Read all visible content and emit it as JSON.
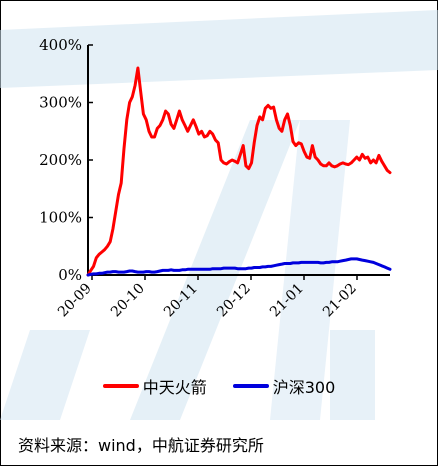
{
  "colors": {
    "series_1": "#ff0000",
    "series_2": "#0000dd",
    "watermark": "#cfe3f1"
  },
  "chart_data": {
    "type": "line",
    "y_axis": {
      "min": 0,
      "max": 400,
      "ticks": [
        "0%",
        "100%",
        "200%",
        "300%",
        "400%"
      ]
    },
    "x_axis": {
      "tick_labels": [
        "20-09",
        "20-10",
        "20-11",
        "20-12",
        "21-01",
        "21-02"
      ]
    },
    "grid": false,
    "legend_position": "bottom",
    "series": [
      {
        "name": "中天火箭",
        "color": "#ff0000",
        "values": [
          0,
          8,
          15,
          30,
          36,
          40,
          44,
          50,
          58,
          80,
          110,
          140,
          160,
          220,
          270,
          300,
          310,
          330,
          360,
          320,
          280,
          270,
          250,
          240,
          240,
          255,
          260,
          270,
          285,
          280,
          262,
          255,
          270,
          285,
          270,
          260,
          250,
          260,
          270,
          258,
          245,
          250,
          240,
          242,
          250,
          245,
          235,
          230,
          200,
          195,
          193,
          197,
          200,
          198,
          195,
          210,
          225,
          190,
          185,
          195,
          230,
          260,
          275,
          270,
          290,
          295,
          290,
          292,
          270,
          255,
          250,
          270,
          280,
          260,
          232,
          225,
          230,
          228,
          215,
          205,
          203,
          225,
          205,
          200,
          193,
          190,
          190,
          195,
          190,
          188,
          190,
          193,
          195,
          193,
          192,
          195,
          200,
          205,
          200,
          210,
          203,
          205,
          195,
          200,
          195,
          208,
          198,
          190,
          182,
          178
        ]
      },
      {
        "name": "沪深300",
        "color": "#0000dd",
        "values": [
          0,
          1,
          2,
          2,
          3,
          3,
          4,
          5,
          5,
          6,
          6,
          5,
          5,
          5,
          6,
          7,
          7,
          6,
          5,
          5,
          5,
          6,
          6,
          5,
          5,
          6,
          7,
          8,
          8,
          8,
          9,
          8,
          8,
          8,
          9,
          9,
          10,
          10,
          10,
          10,
          10,
          10,
          10,
          10,
          10,
          11,
          11,
          11,
          11,
          12,
          12,
          12,
          12,
          12,
          11,
          11,
          11,
          11,
          12,
          12,
          13,
          13,
          13,
          14,
          14,
          15,
          15,
          16,
          17,
          18,
          19,
          20,
          20,
          20,
          21,
          21,
          21,
          22,
          22,
          22,
          22,
          22,
          22,
          22,
          21,
          21,
          22,
          22,
          23,
          23,
          23,
          24,
          25,
          26,
          27,
          28,
          28,
          28,
          27,
          26,
          25,
          24,
          23,
          22,
          20,
          18,
          16,
          14,
          12,
          10
        ]
      }
    ]
  },
  "legend": [
    {
      "label": "中天火箭"
    },
    {
      "label": "沪深300"
    }
  ],
  "source_note": "资料来源：wind，中航证券研究所"
}
